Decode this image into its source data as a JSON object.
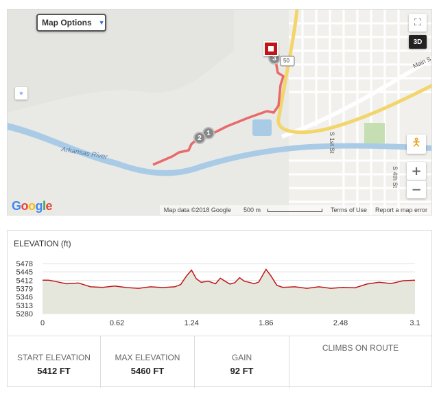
{
  "map": {
    "options_label": "Map Options",
    "threed_label": "3D",
    "zoom_in": "+",
    "zoom_out": "−",
    "markers": [
      "1",
      "2",
      "3"
    ],
    "route_shield": "50",
    "labels": {
      "river": "Arkansas River",
      "main_st": "Main S",
      "s1st": "S 1st St",
      "s4th": "S 4th St"
    },
    "footer": {
      "map_data": "Map data ©2018 Google",
      "scale": "500 m",
      "terms": "Terms of Use",
      "report": "Report a map error"
    },
    "colors": {
      "route": "#e86a6a",
      "water": "#a9cbe6",
      "highway": "#f2d56b"
    }
  },
  "elevation": {
    "title": "ELEVATION (ft)"
  },
  "chart_data": {
    "type": "area",
    "title": "ELEVATION (ft)",
    "xlabel": "",
    "ylabel": "",
    "ylim": [
      5280,
      5478
    ],
    "xlim": [
      0,
      3.1
    ],
    "y_ticks": [
      5280,
      5313,
      5346,
      5379,
      5412,
      5445,
      5478
    ],
    "x_ticks": [
      "0",
      "0.62",
      "1.24",
      "1.86",
      "2.48",
      "3.1"
    ],
    "grid": true,
    "fill_color": "#e6e7dc",
    "line_color": "#c0161a",
    "x": [
      0,
      0.05,
      0.1,
      0.2,
      0.3,
      0.4,
      0.5,
      0.6,
      0.7,
      0.8,
      0.9,
      1.0,
      1.1,
      1.15,
      1.2,
      1.24,
      1.28,
      1.32,
      1.38,
      1.44,
      1.48,
      1.52,
      1.56,
      1.6,
      1.64,
      1.68,
      1.72,
      1.76,
      1.8,
      1.86,
      1.9,
      1.95,
      2.0,
      2.1,
      2.2,
      2.3,
      2.4,
      2.5,
      2.6,
      2.7,
      2.8,
      2.9,
      3.0,
      3.1
    ],
    "values": [
      5412,
      5412,
      5408,
      5398,
      5401,
      5386,
      5384,
      5389,
      5383,
      5380,
      5386,
      5383,
      5386,
      5395,
      5430,
      5452,
      5418,
      5404,
      5408,
      5398,
      5420,
      5408,
      5397,
      5402,
      5422,
      5408,
      5404,
      5398,
      5405,
      5455,
      5430,
      5392,
      5384,
      5386,
      5380,
      5386,
      5380,
      5384,
      5382,
      5397,
      5404,
      5399,
      5410,
      5412
    ]
  },
  "stats": [
    {
      "label": "START ELEVATION",
      "value": "5412 FT"
    },
    {
      "label": "MAX ELEVATION",
      "value": "5460 FT"
    },
    {
      "label": "GAIN",
      "value": "92 FT"
    },
    {
      "label": "CLIMBS ON ROUTE",
      "value": ""
    }
  ]
}
